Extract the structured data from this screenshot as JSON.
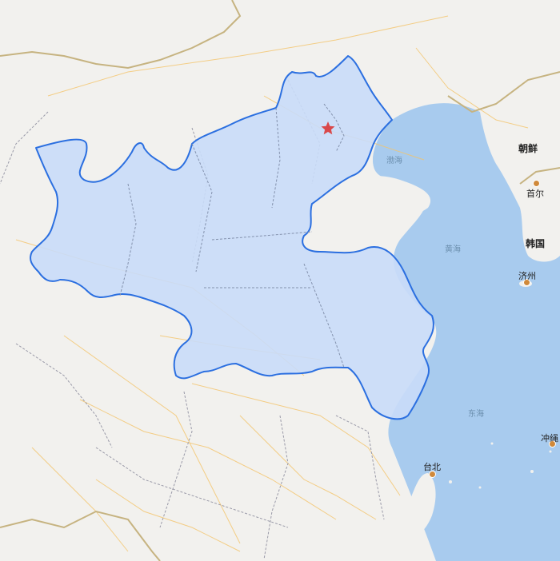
{
  "map": {
    "colors": {
      "land": "#f2f1ee",
      "sea": "#a8cbee",
      "region_fill": "#c9dbf8",
      "region_stroke": "#2b6fe0",
      "roads": "#f4c46a",
      "border": "#c6b380",
      "province": "#9a9aa8",
      "star": "#d9484a"
    },
    "labels": {
      "korea_north": "朝鲜",
      "seoul": "首尔",
      "korea_south": "韩国",
      "jeju": "济州",
      "bohai": "渤海",
      "yellow_sea": "黄海",
      "east_sea": "东海",
      "taipei": "台北",
      "okinawa": "冲绳"
    },
    "icons": {
      "capital": "star-icon",
      "city": "city-dot-icon"
    }
  }
}
